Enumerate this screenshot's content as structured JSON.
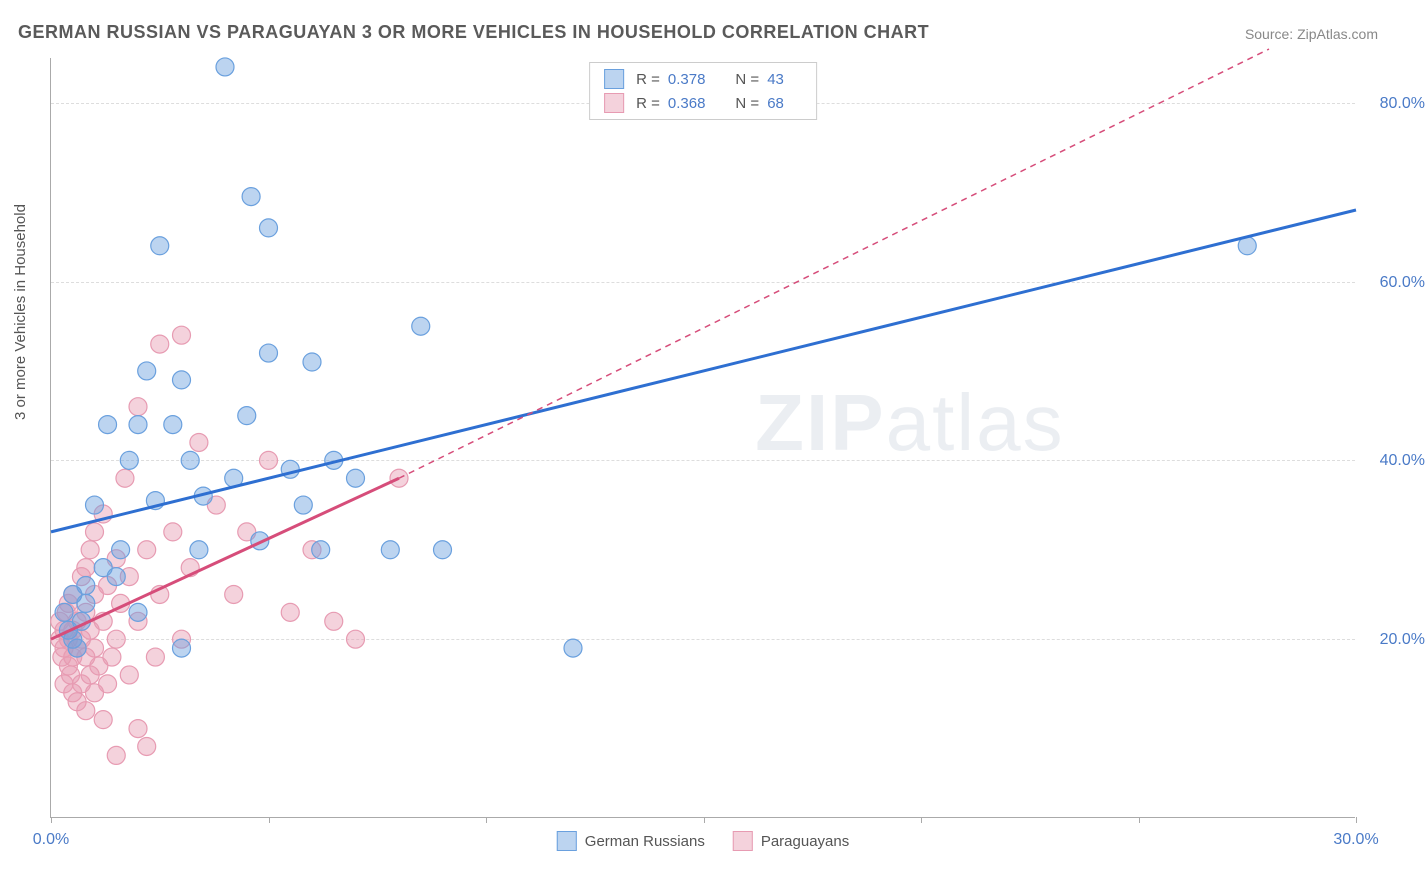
{
  "title": "GERMAN RUSSIAN VS PARAGUAYAN 3 OR MORE VEHICLES IN HOUSEHOLD CORRELATION CHART",
  "source": "Source: ZipAtlas.com",
  "y_axis_label": "3 or more Vehicles in Household",
  "watermark_prefix": "ZIP",
  "watermark_suffix": "atlas",
  "chart": {
    "type": "scatter",
    "xlim": [
      0,
      30
    ],
    "ylim": [
      0,
      85
    ],
    "x_ticks": [
      0,
      5,
      10,
      15,
      20,
      25,
      30
    ],
    "x_tick_labels_shown": {
      "0": "0.0%",
      "30": "30.0%"
    },
    "y_ticks": [
      20,
      40,
      60,
      80
    ],
    "y_tick_labels": [
      "20.0%",
      "40.0%",
      "60.0%",
      "80.0%"
    ],
    "background_color": "#ffffff",
    "grid_color": "#dddddd",
    "axis_color": "#aaaaaa",
    "tick_label_color": "#4a7ac7",
    "marker_radius": 9,
    "marker_opacity": 0.55,
    "trend_line_width": 3,
    "series": [
      {
        "name": "German Russians",
        "color": "#6aa0de",
        "fill": "rgba(106,160,222,0.45)",
        "line_color": "#2e6fd1",
        "r_value": "0.378",
        "n_value": "43",
        "trend_solid": {
          "x1": 0,
          "y1": 32,
          "x2": 30,
          "y2": 68
        },
        "points": [
          [
            0.3,
            23
          ],
          [
            0.4,
            21
          ],
          [
            0.5,
            25
          ],
          [
            0.5,
            20
          ],
          [
            0.6,
            19
          ],
          [
            0.7,
            22
          ],
          [
            0.8,
            24
          ],
          [
            0.8,
            26
          ],
          [
            1.0,
            35
          ],
          [
            1.2,
            28
          ],
          [
            1.3,
            44
          ],
          [
            1.5,
            27
          ],
          [
            1.6,
            30
          ],
          [
            1.8,
            40
          ],
          [
            2.0,
            23
          ],
          [
            2.0,
            44
          ],
          [
            2.2,
            50
          ],
          [
            2.4,
            35.5
          ],
          [
            2.5,
            64
          ],
          [
            2.8,
            44
          ],
          [
            3.0,
            19
          ],
          [
            3.0,
            49
          ],
          [
            3.2,
            40
          ],
          [
            3.4,
            30
          ],
          [
            3.5,
            36
          ],
          [
            4.0,
            84
          ],
          [
            4.2,
            38
          ],
          [
            4.5,
            45
          ],
          [
            4.6,
            69.5
          ],
          [
            4.8,
            31
          ],
          [
            5.0,
            52
          ],
          [
            5.0,
            66
          ],
          [
            5.5,
            39
          ],
          [
            5.8,
            35
          ],
          [
            6.0,
            51
          ],
          [
            6.2,
            30
          ],
          [
            6.5,
            40
          ],
          [
            7.0,
            38
          ],
          [
            7.8,
            30
          ],
          [
            8.5,
            55
          ],
          [
            9.0,
            30
          ],
          [
            12.0,
            19
          ],
          [
            27.5,
            64
          ]
        ]
      },
      {
        "name": "Paraguayans",
        "color": "#e79bb2",
        "fill": "rgba(231,155,178,0.45)",
        "line_color": "#d64d7a",
        "r_value": "0.368",
        "n_value": "68",
        "trend_solid": {
          "x1": 0,
          "y1": 20,
          "x2": 8,
          "y2": 38
        },
        "trend_dashed": {
          "x1": 8,
          "y1": 38,
          "x2": 28,
          "y2": 86
        },
        "points": [
          [
            0.2,
            20
          ],
          [
            0.2,
            22
          ],
          [
            0.25,
            18
          ],
          [
            0.3,
            15
          ],
          [
            0.3,
            19
          ],
          [
            0.3,
            21
          ],
          [
            0.35,
            23
          ],
          [
            0.4,
            17
          ],
          [
            0.4,
            20
          ],
          [
            0.4,
            24
          ],
          [
            0.45,
            16
          ],
          [
            0.5,
            14
          ],
          [
            0.5,
            18
          ],
          [
            0.5,
            21
          ],
          [
            0.5,
            25
          ],
          [
            0.6,
            13
          ],
          [
            0.6,
            19
          ],
          [
            0.6,
            22
          ],
          [
            0.7,
            15
          ],
          [
            0.7,
            20
          ],
          [
            0.7,
            27
          ],
          [
            0.8,
            12
          ],
          [
            0.8,
            18
          ],
          [
            0.8,
            23
          ],
          [
            0.8,
            28
          ],
          [
            0.9,
            16
          ],
          [
            0.9,
            21
          ],
          [
            0.9,
            30
          ],
          [
            1.0,
            14
          ],
          [
            1.0,
            19
          ],
          [
            1.0,
            25
          ],
          [
            1.0,
            32
          ],
          [
            1.1,
            17
          ],
          [
            1.2,
            11
          ],
          [
            1.2,
            22
          ],
          [
            1.2,
            34
          ],
          [
            1.3,
            15
          ],
          [
            1.3,
            26
          ],
          [
            1.4,
            18
          ],
          [
            1.5,
            7
          ],
          [
            1.5,
            20
          ],
          [
            1.5,
            29
          ],
          [
            1.6,
            24
          ],
          [
            1.7,
            38
          ],
          [
            1.8,
            16
          ],
          [
            1.8,
            27
          ],
          [
            2.0,
            10
          ],
          [
            2.0,
            22
          ],
          [
            2.0,
            46
          ],
          [
            2.2,
            8
          ],
          [
            2.2,
            30
          ],
          [
            2.4,
            18
          ],
          [
            2.5,
            25
          ],
          [
            2.5,
            53
          ],
          [
            2.8,
            32
          ],
          [
            3.0,
            20
          ],
          [
            3.0,
            54
          ],
          [
            3.2,
            28
          ],
          [
            3.4,
            42
          ],
          [
            3.8,
            35
          ],
          [
            4.2,
            25
          ],
          [
            4.5,
            32
          ],
          [
            5.0,
            40
          ],
          [
            5.5,
            23
          ],
          [
            6.0,
            30
          ],
          [
            6.5,
            22
          ],
          [
            7.0,
            20
          ],
          [
            8.0,
            38
          ]
        ]
      }
    ]
  },
  "legend_top": {
    "r_label": "R =",
    "n_label": "N ="
  },
  "legend_bottom": [
    {
      "label": "German Russians",
      "color_idx": 0
    },
    {
      "label": "Paraguayans",
      "color_idx": 1
    }
  ]
}
